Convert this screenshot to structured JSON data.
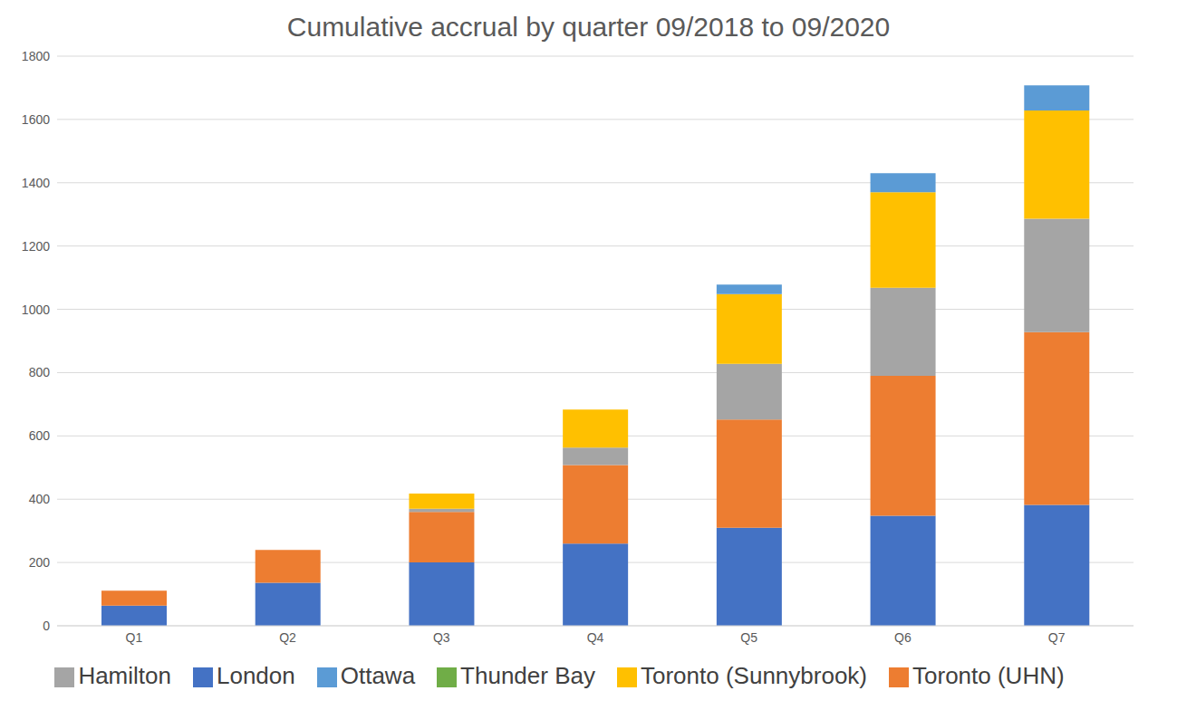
{
  "chart_data": {
    "type": "bar",
    "title": "Cumulative accrual by quarter 09/2018 to 09/2020",
    "categories": [
      "Q1",
      "Q2",
      "Q3",
      "Q4",
      "Q5",
      "Q6",
      "Q7"
    ],
    "series": [
      {
        "name": "London",
        "color": "#4472C4",
        "values": [
          64,
          136,
          200,
          260,
          310,
          348,
          382
        ]
      },
      {
        "name": "Toronto (UHN)",
        "color": "#ED7D31",
        "values": [
          47,
          104,
          160,
          248,
          342,
          442,
          546
        ]
      },
      {
        "name": "Hamilton",
        "color": "#A5A5A5",
        "values": [
          0,
          0,
          10,
          55,
          176,
          278,
          358
        ]
      },
      {
        "name": "Toronto (Sunnybrook)",
        "color": "#FFC000",
        "values": [
          0,
          0,
          48,
          120,
          220,
          302,
          342
        ]
      },
      {
        "name": "Ottawa",
        "color": "#5B9BD5",
        "values": [
          0,
          0,
          0,
          0,
          30,
          60,
          80
        ]
      },
      {
        "name": "Thunder Bay",
        "color": "#70AD47",
        "values": [
          0,
          0,
          0,
          0,
          0,
          0,
          0
        ]
      }
    ],
    "ylim": [
      0,
      1800
    ],
    "yticks": [
      0,
      200,
      400,
      600,
      800,
      1000,
      1200,
      1400,
      1600,
      1800
    ],
    "stacked": true,
    "grid": true,
    "legend": "bottom"
  }
}
